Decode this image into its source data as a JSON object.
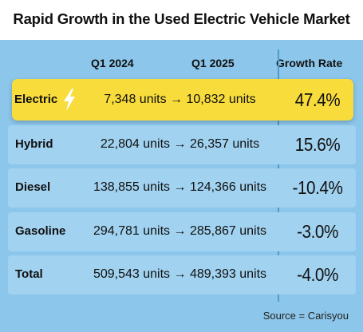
{
  "title": "Rapid Growth in the Used Electric Vehicle Market",
  "headers": {
    "q1_2024": "Q1 2024",
    "q1_2025": "Q1 2025",
    "growth_rate": "Growth Rate"
  },
  "rows": [
    {
      "label": "Electric",
      "values": "7,348 units → 10,832 units",
      "rate": "47.4%",
      "icon": "lightning-bolt-icon",
      "highlight_color": "#f8dc3c"
    },
    {
      "label": "Hybrid",
      "values": "22,804 units → 26,357 units",
      "rate": "15.6%"
    },
    {
      "label": "Diesel",
      "values": "138,855 units → 124,366 units",
      "rate": "-10.4%"
    },
    {
      "label": "Gasoline",
      "values": "294,781 units → 285,867 units",
      "rate": "-3.0%"
    },
    {
      "label": "Total",
      "values": "509,543 units → 489,393 units",
      "rate": "-4.0%"
    }
  ],
  "source": "Source = Carisyou",
  "colors": {
    "background": "#8cc6ea",
    "row": "#a1d2f0",
    "highlight": "#f8dc3c",
    "divider": "#4f9ac9"
  }
}
